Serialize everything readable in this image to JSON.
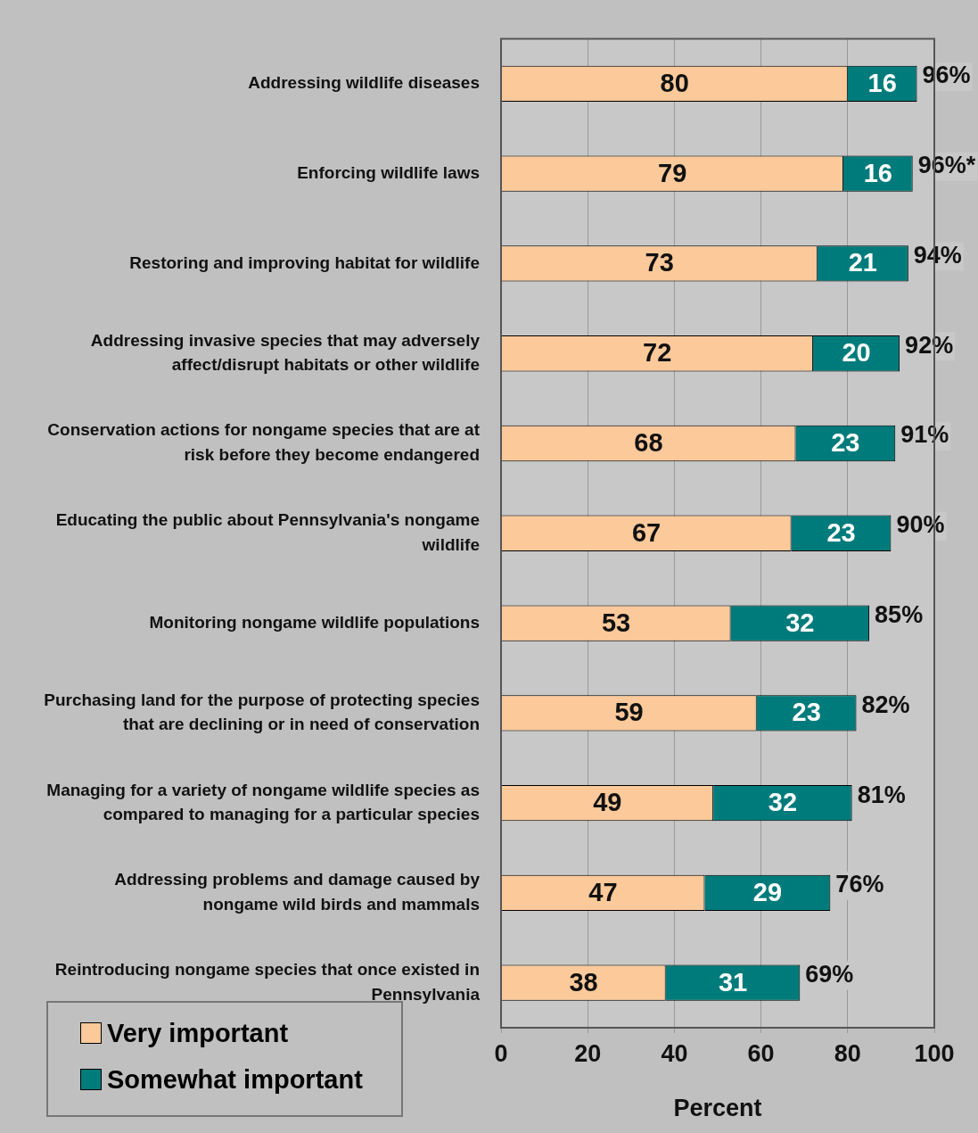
{
  "chart_data": {
    "type": "bar",
    "orientation": "horizontal",
    "stacked": true,
    "xlabel": "Percent",
    "categories": [
      "Addressing wildlife diseases",
      "Enforcing wildlife laws",
      "Restoring and improving habitat for wildlife",
      "Addressing invasive species that may adversely affect/disrupt habitats or other wildlife",
      "Conservation actions for nongame species that are at risk before they become endangered",
      "Educating the public about Pennsylvania's nongame wildlife",
      "Monitoring nongame wildlife populations",
      "Purchasing land for the purpose of protecting species that are declining or in need of conservation",
      "Managing for a variety of nongame wildlife species as compared to managing for a particular species",
      "Addressing problems and damage caused by nongame wild birds and mammals",
      "Reintroducing nongame species that once existed in Pennsylvania"
    ],
    "series": [
      {
        "name": "Very important",
        "color": "#fcc99a",
        "values": [
          80,
          79,
          73,
          72,
          68,
          67,
          53,
          59,
          49,
          47,
          38
        ]
      },
      {
        "name": "Somewhat important",
        "color": "#007b7b",
        "values": [
          16,
          16,
          21,
          20,
          23,
          23,
          32,
          23,
          32,
          29,
          31
        ]
      }
    ],
    "totals": [
      "96%",
      "96%*",
      "94%",
      "92%",
      "91%",
      "90%",
      "85%",
      "82%",
      "81%",
      "76%",
      "69%"
    ],
    "data_labels": true,
    "xlim": [
      0,
      100
    ],
    "xticks": [
      0,
      20,
      40,
      60,
      80,
      100
    ],
    "grid": "x",
    "legend": "bottom left"
  }
}
